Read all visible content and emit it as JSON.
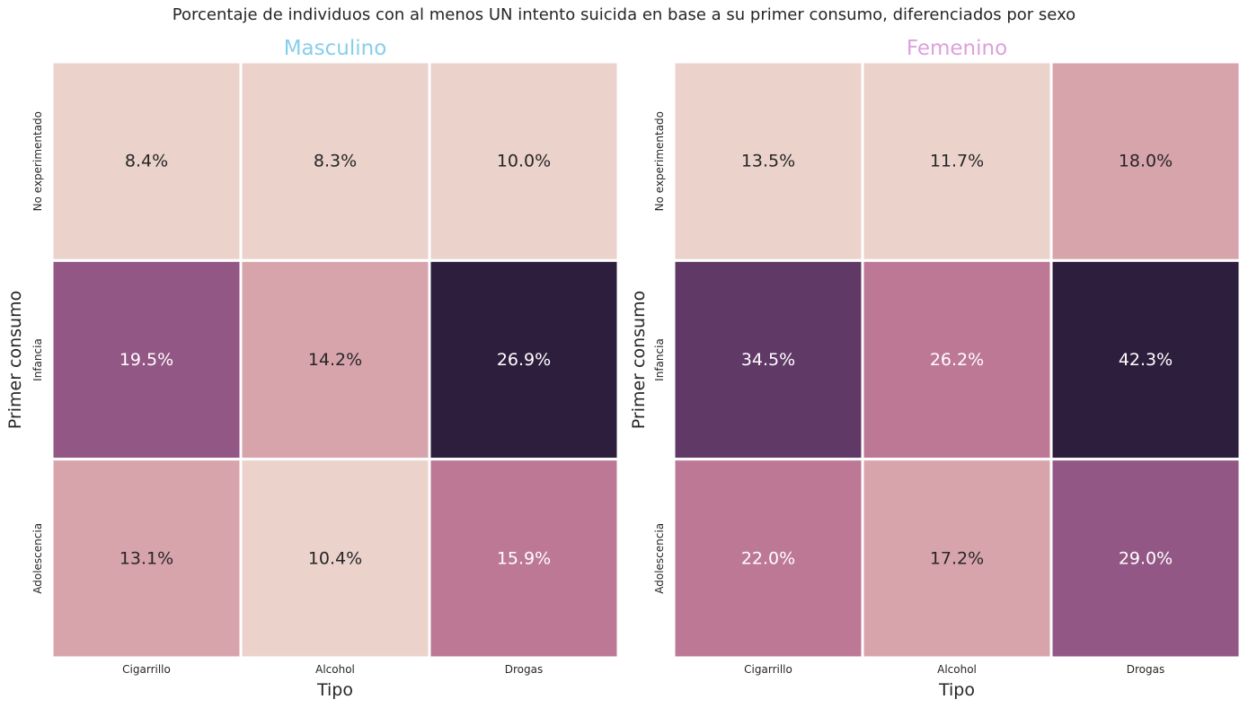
{
  "figure": {
    "title": "Porcentaje de individuos con al menos UN intento suicida en base a su primer consumo, diferenciados por sexo"
  },
  "chart_data": [
    {
      "type": "heatmap",
      "title": "Masculino",
      "title_color": "#87CEEB",
      "xlabel": "Tipo",
      "ylabel": "Primer consumo",
      "x_categories": [
        "Cigarrillo",
        "Alcohol",
        "Drogas"
      ],
      "y_categories": [
        "No experimentado",
        "Infancia",
        "Adolescencia"
      ],
      "values": [
        [
          8.4,
          8.3,
          10.0
        ],
        [
          19.5,
          14.2,
          26.9
        ],
        [
          13.1,
          10.4,
          15.9
        ]
      ],
      "value_format": "percent_1dp",
      "colors": [
        [
          "#ebd3cc",
          "#ebd3cc",
          "#ebd3cc"
        ],
        [
          "#935785",
          "#d8a4ac",
          "#2d1e3e"
        ],
        [
          "#d8a4ac",
          "#ebd3cc",
          "#bd7896"
        ]
      ],
      "colorbar": false
    },
    {
      "type": "heatmap",
      "title": "Femenino",
      "title_color": "#DDA0DD",
      "xlabel": "Tipo",
      "ylabel": "Primer consumo",
      "x_categories": [
        "Cigarrillo",
        "Alcohol",
        "Drogas"
      ],
      "y_categories": [
        "No experimentado",
        "Infancia",
        "Adolescencia"
      ],
      "values": [
        [
          13.5,
          11.7,
          18.0
        ],
        [
          34.5,
          26.2,
          42.3
        ],
        [
          22.0,
          17.2,
          29.0
        ]
      ],
      "value_format": "percent_1dp",
      "colors": [
        [
          "#ebd3cc",
          "#ebd3cc",
          "#d8a4ac"
        ],
        [
          "#603967",
          "#bd7896",
          "#2d1e3e"
        ],
        [
          "#bd7896",
          "#d8a4ac",
          "#935785"
        ]
      ],
      "colorbar": false
    }
  ]
}
